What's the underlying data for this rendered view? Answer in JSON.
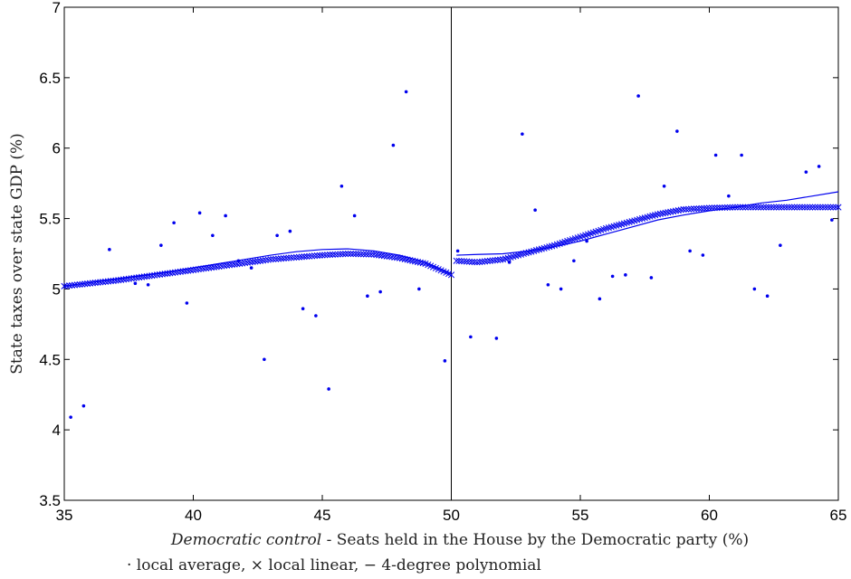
{
  "chart_data": {
    "type": "scatter",
    "xlabel_emph": "Democratic control",
    "xlabel_rest": " - Seats held in the House by the Democratic party (%)",
    "ylabel": "State taxes over state GDP (%)",
    "legend_note": "· local average, × local linear, − 4-degree polynomial",
    "xlim": [
      35,
      65
    ],
    "ylim": [
      3.5,
      7
    ],
    "xticks": [
      35,
      40,
      45,
      50,
      55,
      60,
      65
    ],
    "yticks": [
      3.5,
      4,
      4.5,
      5,
      5.5,
      6,
      6.5,
      7
    ],
    "ytick_labels": [
      "3.5",
      "4",
      "4.5",
      "5",
      "5.5",
      "6",
      "6.5",
      "7"
    ],
    "cutoff": 50,
    "series_color": "#0000ee",
    "series": [
      {
        "label": "local average",
        "marker": "dot",
        "points": [
          [
            35.25,
            4.09
          ],
          [
            35.75,
            4.17
          ],
          [
            36.75,
            5.28
          ],
          [
            37.75,
            5.04
          ],
          [
            38.25,
            5.03
          ],
          [
            38.75,
            5.31
          ],
          [
            39.25,
            5.47
          ],
          [
            39.75,
            4.9
          ],
          [
            40.25,
            5.54
          ],
          [
            40.75,
            5.38
          ],
          [
            41.25,
            5.52
          ],
          [
            41.75,
            5.2
          ],
          [
            42.25,
            5.15
          ],
          [
            42.75,
            4.5
          ],
          [
            43.25,
            5.38
          ],
          [
            43.75,
            5.41
          ],
          [
            44.25,
            4.86
          ],
          [
            44.75,
            4.81
          ],
          [
            45.25,
            4.29
          ],
          [
            45.75,
            5.73
          ],
          [
            46.25,
            5.52
          ],
          [
            46.75,
            4.95
          ],
          [
            47.25,
            4.98
          ],
          [
            47.75,
            6.02
          ],
          [
            48.25,
            6.4
          ],
          [
            48.75,
            5.0
          ],
          [
            49.75,
            4.49
          ],
          [
            50.25,
            5.27
          ],
          [
            50.75,
            4.66
          ],
          [
            51.75,
            4.65
          ],
          [
            52.25,
            5.19
          ],
          [
            52.75,
            6.1
          ],
          [
            53.25,
            5.56
          ],
          [
            53.75,
            5.03
          ],
          [
            54.25,
            5.0
          ],
          [
            54.75,
            5.2
          ],
          [
            55.25,
            5.34
          ],
          [
            55.75,
            4.93
          ],
          [
            56.25,
            5.09
          ],
          [
            56.75,
            5.1
          ],
          [
            57.25,
            6.37
          ],
          [
            57.75,
            5.08
          ],
          [
            58.25,
            5.73
          ],
          [
            58.75,
            6.12
          ],
          [
            59.25,
            5.27
          ],
          [
            59.75,
            5.24
          ],
          [
            60.25,
            5.95
          ],
          [
            60.75,
            5.66
          ],
          [
            61.25,
            5.95
          ],
          [
            61.75,
            5.0
          ],
          [
            62.25,
            4.95
          ],
          [
            62.75,
            5.31
          ],
          [
            63.75,
            5.83
          ],
          [
            64.25,
            5.87
          ],
          [
            64.75,
            5.49
          ]
        ]
      },
      {
        "label": "local linear",
        "marker": "x",
        "segments": [
          {
            "x_from": 35,
            "x_to": 50,
            "knots": [
              [
                35.0,
                5.02
              ],
              [
                37.0,
                5.06
              ],
              [
                39.0,
                5.11
              ],
              [
                41.0,
                5.16
              ],
              [
                43.0,
                5.21
              ],
              [
                45.0,
                5.24
              ],
              [
                46.0,
                5.25
              ],
              [
                47.0,
                5.245
              ],
              [
                48.0,
                5.22
              ],
              [
                49.0,
                5.18
              ],
              [
                50.0,
                5.1
              ]
            ]
          },
          {
            "x_from": 50.2,
            "x_to": 65,
            "knots": [
              [
                50.2,
                5.2
              ],
              [
                51.0,
                5.19
              ],
              [
                52.0,
                5.21
              ],
              [
                53.0,
                5.26
              ],
              [
                54.0,
                5.31
              ],
              [
                55.0,
                5.37
              ],
              [
                56.0,
                5.43
              ],
              [
                57.0,
                5.48
              ],
              [
                58.0,
                5.53
              ],
              [
                59.0,
                5.565
              ],
              [
                60.0,
                5.575
              ],
              [
                61.0,
                5.58
              ],
              [
                63.0,
                5.58
              ],
              [
                65.0,
                5.58
              ]
            ]
          }
        ]
      },
      {
        "label": "4-degree polynomial",
        "marker": "line",
        "segments": [
          {
            "knots": [
              [
                35.0,
                5.02
              ],
              [
                37.0,
                5.07
              ],
              [
                39.0,
                5.12
              ],
              [
                41.0,
                5.18
              ],
              [
                43.0,
                5.24
              ],
              [
                44.0,
                5.265
              ],
              [
                45.0,
                5.28
              ],
              [
                46.0,
                5.285
              ],
              [
                47.0,
                5.27
              ],
              [
                48.0,
                5.24
              ],
              [
                49.0,
                5.19
              ],
              [
                50.0,
                5.11
              ]
            ]
          },
          {
            "knots": [
              [
                50.2,
                5.24
              ],
              [
                51.0,
                5.245
              ],
              [
                52.0,
                5.25
              ],
              [
                53.0,
                5.27
              ],
              [
                54.0,
                5.3
              ],
              [
                55.0,
                5.34
              ],
              [
                56.0,
                5.39
              ],
              [
                57.0,
                5.44
              ],
              [
                58.0,
                5.49
              ],
              [
                59.0,
                5.525
              ],
              [
                60.0,
                5.555
              ],
              [
                61.0,
                5.58
              ],
              [
                62.0,
                5.61
              ],
              [
                63.0,
                5.63
              ],
              [
                64.0,
                5.66
              ],
              [
                65.0,
                5.69
              ]
            ]
          }
        ]
      }
    ]
  }
}
